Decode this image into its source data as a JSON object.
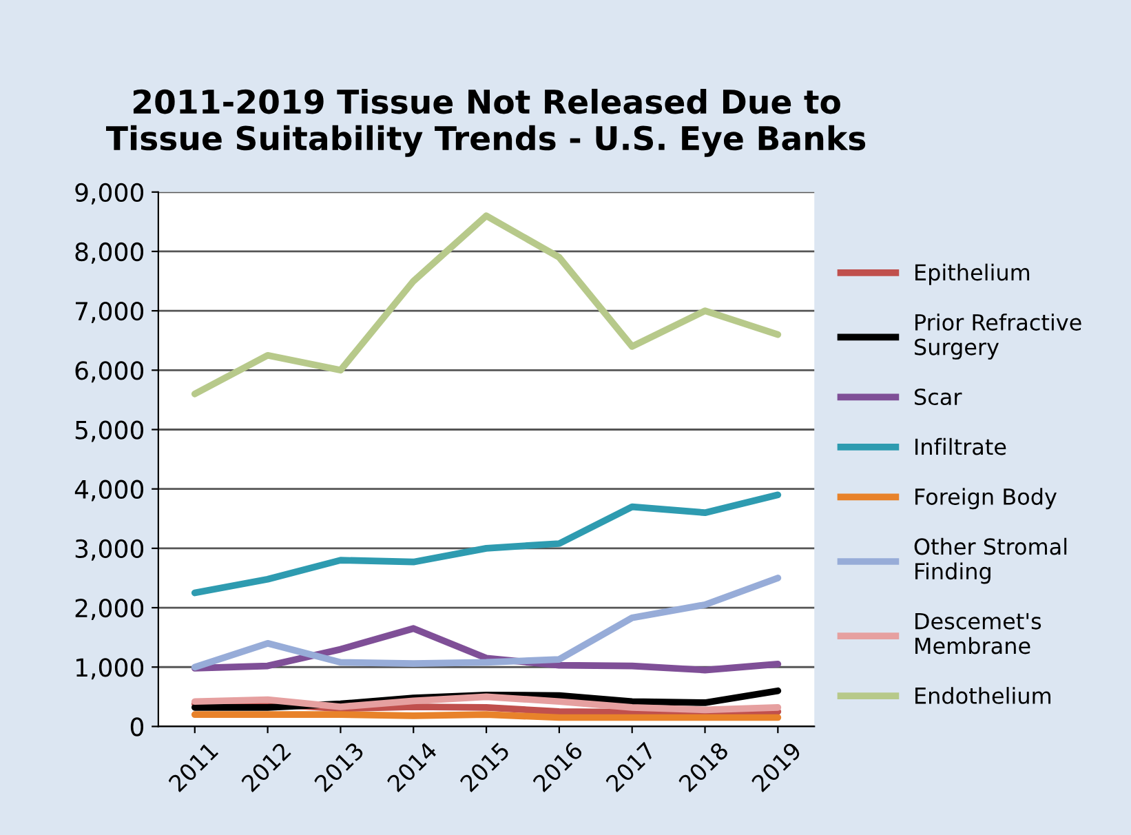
{
  "chart_data": {
    "type": "line",
    "title": "2011-2019 Tissue Not Released Due to\nTissue Suitability Trends - U.S. Eye Banks",
    "categories": [
      "2011",
      "2012",
      "2013",
      "2014",
      "2015",
      "2016",
      "2017",
      "2018",
      "2019"
    ],
    "series": [
      {
        "name": "Epithelium",
        "color": "#c0504d",
        "values": [
          380,
          380,
          300,
          330,
          320,
          250,
          240,
          230,
          250
        ]
      },
      {
        "name": "Prior Refractive Surgery",
        "color": "#000000",
        "values": [
          320,
          320,
          380,
          480,
          530,
          520,
          420,
          400,
          600
        ]
      },
      {
        "name": "Scar",
        "color": "#7f4f97",
        "values": [
          980,
          1020,
          1300,
          1650,
          1150,
          1030,
          1020,
          950,
          1050
        ]
      },
      {
        "name": "Infiltrate",
        "color": "#2e9bb0",
        "values": [
          2250,
          2480,
          2800,
          2770,
          3000,
          3080,
          3700,
          3600,
          3900
        ]
      },
      {
        "name": "Foreign Body",
        "color": "#e8822a",
        "values": [
          200,
          200,
          200,
          180,
          200,
          150,
          150,
          150,
          150
        ]
      },
      {
        "name": "Other Stromal Finding",
        "color": "#97acd8",
        "values": [
          1000,
          1400,
          1080,
          1060,
          1080,
          1130,
          1830,
          2050,
          2500
        ]
      },
      {
        "name": "Descemet's Membrane",
        "color": "#e6a0a0",
        "values": [
          420,
          450,
          330,
          430,
          500,
          420,
          320,
          280,
          320
        ]
      },
      {
        "name": "Endothelium",
        "color": "#b7c98a",
        "values": [
          5600,
          6250,
          6000,
          7500,
          8600,
          7900,
          6400,
          7000,
          6600
        ]
      }
    ],
    "ylim": [
      0,
      9000
    ],
    "yticks": [
      {
        "value": 0,
        "label": "0"
      },
      {
        "value": 1000,
        "label": "1,000"
      },
      {
        "value": 2000,
        "label": "2,000"
      },
      {
        "value": 3000,
        "label": "3,000"
      },
      {
        "value": 4000,
        "label": "4,000"
      },
      {
        "value": 5000,
        "label": "5,000"
      },
      {
        "value": 6000,
        "label": "6,000"
      },
      {
        "value": 7000,
        "label": "7,000"
      },
      {
        "value": 8000,
        "label": "8,000"
      },
      {
        "value": 9000,
        "label": "9,000"
      }
    ],
    "grid": "y",
    "legend": "right",
    "marker": "none",
    "line_style": "solid"
  }
}
